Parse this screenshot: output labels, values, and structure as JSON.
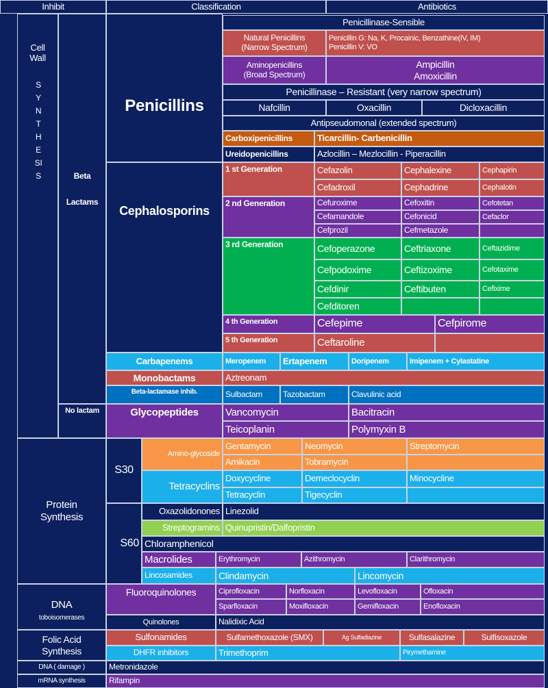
{
  "colors": {
    "navy": "#0c1f5e",
    "red": "#c0504d",
    "purple": "#7030a0",
    "green": "#00b050",
    "brown": "#c55a11",
    "light_blue": "#1cb0ea",
    "blue": "#0070c0",
    "orange": "#f79646",
    "lime": "#92d050"
  },
  "header": {
    "inhibit": "Inhibit",
    "classification": "Classification",
    "antibiotics": "Antibiotics"
  },
  "cell_wall": {
    "label": "Cell\nWall",
    "synthesis": "SYNTHESIS",
    "beta_lactams": "Beta\nLactams",
    "no_lactam": "No lactam"
  },
  "penicillins": {
    "title": "Penicillins",
    "sensible": "Penicillinase-Sensible",
    "natural": {
      "label": "Natural Penicillins\n(Narrow Spectrum)",
      "drugs": "Penicillin G: Na, K, Procainic, Benzathine(IV, IM)\nPenicillin V: VO"
    },
    "amino": {
      "label": "Aminopenicillins\n(Broad Spectrum)",
      "drugs": "Ampicillin\nAmoxicillin"
    },
    "resistant": "Penicillinase – Resistant (very narrow spectrum)",
    "resistant_drugs": [
      "Nafcillin",
      "Oxacillin",
      "Dicloxacillin"
    ],
    "antipseudomonal": "Antipseudomonal (extended spectrum)",
    "carboxi": {
      "label": "Carboxipenicillins",
      "drugs": "Ticarcillin- Carbenicillin"
    },
    "ureido": {
      "label": "Ureidopenicillins",
      "drugs": "Azlocillin – Mezlocillin - Piperacillin"
    }
  },
  "cephalosporins": {
    "title": "Cephalosporins",
    "generations": [
      {
        "label": "1 st Generation",
        "rows": [
          [
            "Cefazolin",
            "Cephalexine",
            "Cephapirin"
          ],
          [
            "Cefadroxil",
            "Cephadrine",
            "Cephalotin"
          ]
        ]
      },
      {
        "label": "2 nd Generation",
        "rows": [
          [
            "Cefuroxime",
            "Cefoxitin",
            "Cefotetan"
          ],
          [
            "Cefamandole",
            "Cefonicid",
            "Cefaclor"
          ],
          [
            "Cefprozil",
            "Cefmetazole",
            ""
          ]
        ]
      },
      {
        "label": "3 rd Generation",
        "rows": [
          [
            "Cefoperazone",
            "Ceftriaxone",
            "Ceftazidime"
          ],
          [
            "Cefpodoxime",
            "Ceftizoxime",
            "Cefotaxime"
          ],
          [
            "Cefdinir",
            "Ceftibuten",
            "Cefixime"
          ],
          [
            "Cefditoren",
            "",
            ""
          ]
        ]
      },
      {
        "label": "4 th Generation",
        "rows": [
          [
            "Cefepime",
            "Cefpirome"
          ]
        ]
      },
      {
        "label": "5 th Generation",
        "rows": [
          [
            "Ceftaroline",
            ""
          ]
        ]
      }
    ]
  },
  "carbapenems": {
    "label": "Carbapenems",
    "drugs": [
      "Meropenem",
      "Ertapenem",
      "Doripenem",
      "Imipenem + Cylastatine"
    ]
  },
  "monobactams": {
    "label": "Monobactams",
    "drugs": [
      "Aztreonam"
    ]
  },
  "beta_lactamase": {
    "label": "Beta-lactamase inhib.",
    "drugs": [
      "Sulbactam",
      "Tazobactam",
      "Clavulinic acid"
    ]
  },
  "glycopeptides": {
    "label": "Glycopeptides",
    "rows": [
      [
        "Vancomycin",
        "Bacitracin"
      ],
      [
        "Teicoplanin",
        "Polymyxin B"
      ]
    ]
  },
  "protein": {
    "label": "Protein\nSynthesis",
    "s30": "S30",
    "s60": "S60",
    "aminoglycoside": {
      "label": "Amino-glycoside",
      "rows": [
        [
          "Gentamycin",
          "Neomycin",
          "Streptomycin"
        ],
        [
          "Amikacin",
          "Tobramycin",
          ""
        ]
      ]
    },
    "tetracyclins": {
      "label": "Tetracyclins",
      "rows": [
        [
          "Doxycycline",
          "Demeclocyclin",
          "Minocycline"
        ],
        [
          "Tetracyclin",
          "Tigecyclin",
          ""
        ]
      ]
    },
    "oxazolidonones": {
      "label": "Oxazolidonones",
      "drug": "Linezolid"
    },
    "streptogramins": {
      "label": "Streptogramins",
      "drug": "Quinupristin/Dalfopristin"
    },
    "chloramphenicol": "Chloramphenicol",
    "macrolides": {
      "label": "Macrolides",
      "drugs": [
        "Erythromycin",
        "Azithromycin",
        "Clarithromycin"
      ]
    },
    "lincosamides": {
      "label": "Lincosamides",
      "drugs": [
        "Clindamycin",
        "Lincomycin"
      ]
    }
  },
  "dna_topo": {
    "label": "DNA",
    "sublabel": "toboisomerases",
    "fluoroquinolones": {
      "label": "Fluoroquinolones",
      "rows": [
        [
          "Ciprofloxacin",
          "Norfloxacin",
          "Levofloxacin",
          "Ofloxacin"
        ],
        [
          "Sparfloxacin",
          "Moxifloxacin",
          "Gemifloxacin",
          "Enofloxacin"
        ]
      ]
    },
    "quinolones": {
      "label": "Quinolones",
      "drug": "Nalidixic Acid"
    }
  },
  "folic": {
    "label": "Folic Acid\nSynthesis",
    "sulfonamides": {
      "label": "Sulfonamides",
      "drugs": [
        "Sulfamethoxazole (SMX)",
        "Ag Sulfadiazine",
        "Sulfasalazine",
        "Sulfisoxazole"
      ]
    },
    "dhfr": {
      "label": "DHFR inhibitors",
      "drugs": [
        "Trimethoprim",
        "Pirymethamine"
      ]
    }
  },
  "dna_damage": {
    "label": "DNA ( damage )",
    "drug": "Metronidazole"
  },
  "mrna": {
    "label": "mRNA synthesis",
    "drug": "Rifampin"
  }
}
